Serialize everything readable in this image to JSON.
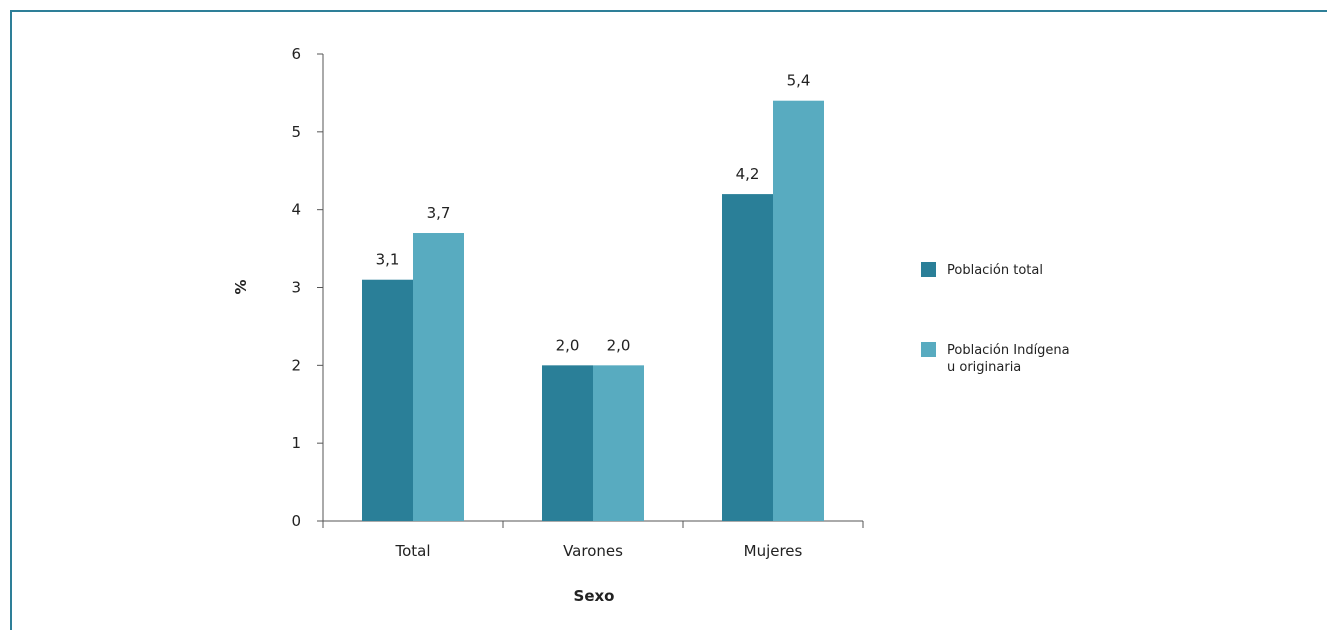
{
  "chart_data": {
    "type": "bar",
    "categories": [
      "Total",
      "Varones",
      "Mujeres"
    ],
    "series": [
      {
        "name": "Población total",
        "values": [
          3.1,
          2.0,
          4.2
        ],
        "labels": [
          "3,1",
          "2,0",
          "4,2"
        ],
        "color": "#2a7f98"
      },
      {
        "name": "Población Indígena u originaria",
        "values": [
          3.7,
          2.0,
          5.4
        ],
        "labels": [
          "3,7",
          "2,0",
          "5,4"
        ],
        "color": "#58abc0"
      }
    ],
    "legend_lines": [
      [
        "Población total"
      ],
      [
        "Población Indígena",
        "u originaria"
      ]
    ],
    "xlabel": "Sexo",
    "ylabel": "%",
    "ylim": [
      0,
      6
    ],
    "yticks": [
      "0",
      "1",
      "2",
      "3",
      "4",
      "5",
      "6"
    ],
    "grid": false,
    "legend_position": "right"
  },
  "colors": {
    "frame": "#2e7f98",
    "axis": "#555555"
  }
}
